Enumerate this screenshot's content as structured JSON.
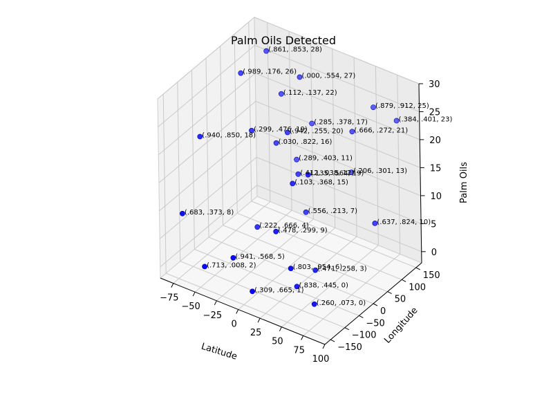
{
  "chart_data": {
    "type": "scatter",
    "title": "Palm Oils Detected",
    "xlabel": "Latitude",
    "ylabel": "Longitude",
    "zlabel": "Palm Oils",
    "xlim": [
      -90,
      100
    ],
    "ylim": [
      -170,
      170
    ],
    "zlim": [
      -2,
      30
    ],
    "xticks": [
      -75,
      -50,
      -25,
      0,
      25,
      50,
      75,
      100
    ],
    "yticks": [
      -150,
      -100,
      -50,
      0,
      50,
      100,
      150
    ],
    "zticks": [
      0,
      5,
      10,
      15,
      20,
      25,
      30
    ],
    "grid": true,
    "marker_color": "#0000ff",
    "points": [
      {
        "x": -60,
        "y": 120,
        "z": 28,
        "label": "(.861, .853, 28)"
      },
      {
        "x": -70,
        "y": 60,
        "z": 26,
        "label": "(.989, .176, 26)"
      },
      {
        "x": -40,
        "y": 110,
        "z": 22,
        "label": "(.112, .137, 22)"
      },
      {
        "x": -15,
        "y": 140,
        "z": 17,
        "label": "(.285, .378, 17)"
      },
      {
        "x": -25,
        "y": 115,
        "z": 11,
        "label": "(.289, .403, 11)"
      },
      {
        "x": -15,
        "y": 100,
        "z": 27,
        "label": "(.000, .554, 27)"
      },
      {
        "x": -30,
        "y": 60,
        "z": 16,
        "label": "(.030, .822, 16)"
      },
      {
        "x": -5,
        "y": 60,
        "z": 12,
        "label": "(.412, .038, 12)"
      },
      {
        "x": -45,
        "y": 20,
        "z": 19,
        "label": "(.299, .476, 19)"
      },
      {
        "x": -10,
        "y": 40,
        "z": 20,
        "label": "(.942, .255, 20)"
      },
      {
        "x": -85,
        "y": -40,
        "z": 18,
        "label": "(.940, .850, 18)"
      },
      {
        "x": 60,
        "y": 130,
        "z": 25,
        "label": "(.879, .912, 25)"
      },
      {
        "x": 80,
        "y": 150,
        "z": 23,
        "label": "(.384, .401, 23)"
      },
      {
        "x": 40,
        "y": 110,
        "z": 13,
        "label": "(.206, .301, 13)"
      },
      {
        "x": 45,
        "y": 100,
        "z": 21,
        "label": "(.666, .272, 21)"
      },
      {
        "x": 10,
        "y": 40,
        "z": 7,
        "label": "(.556, .213, 7)"
      },
      {
        "x": -30,
        "y": -10,
        "z": 4,
        "label": "(.222, .666, 4)"
      },
      {
        "x": 15,
        "y": -20,
        "z": 15,
        "label": "(.103, .368, 15)"
      },
      {
        "x": 90,
        "y": 40,
        "z": 10,
        "label": "(.637, .824, 10)"
      },
      {
        "x": 40,
        "y": -40,
        "z": 19,
        "label": "(.135, .564, 19)"
      },
      {
        "x": -80,
        "y": -120,
        "z": 8,
        "label": "(.683, .373, 8)"
      },
      {
        "x": 15,
        "y": -80,
        "z": 9,
        "label": "(.478, .299, 9)"
      },
      {
        "x": 35,
        "y": -70,
        "z": 0,
        "label": "(.838, .445, 0)"
      },
      {
        "x": 50,
        "y": -50,
        "z": 3,
        "label": "(.471, .258, 3)"
      },
      {
        "x": -15,
        "y": -140,
        "z": 5,
        "label": "(.941, .568, 5)"
      },
      {
        "x": -45,
        "y": -150,
        "z": 2,
        "label": "(.713, .008, 2)"
      },
      {
        "x": 65,
        "y": -100,
        "z": 0,
        "label": "(.260, .073, 0)"
      },
      {
        "x": 45,
        "y": -120,
        "z": 6,
        "label": "(.803, .954, 6)"
      },
      {
        "x": 10,
        "y": -150,
        "z": 1,
        "label": "(.309, .665, 1)"
      }
    ]
  }
}
